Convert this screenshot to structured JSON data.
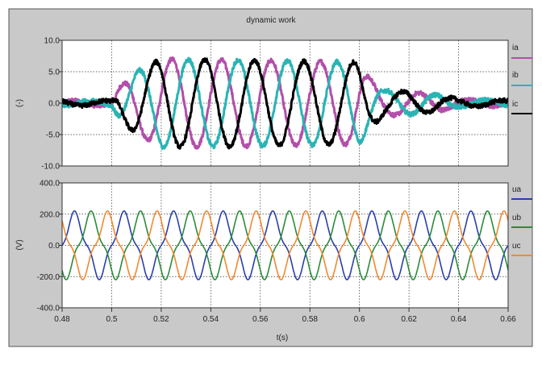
{
  "chart_data": [
    {
      "type": "line",
      "title": "dynamic work",
      "xlabel": "",
      "ylabel": "(-)",
      "xlim": [
        0.48,
        0.66
      ],
      "ylim": [
        -10,
        10
      ],
      "yticks": [
        "10.0",
        "5.0",
        "0.0",
        "-5.0",
        "-10.0"
      ],
      "ytick_values": [
        10,
        5,
        0,
        -5,
        -10
      ],
      "grid": true,
      "legend_position": "right",
      "freq_hz": 50,
      "amplitude_envelope": [
        [
          0.48,
          0.4
        ],
        [
          0.5,
          0.4
        ],
        [
          0.503,
          2.5
        ],
        [
          0.51,
          5
        ],
        [
          0.52,
          7
        ],
        [
          0.56,
          6.8
        ],
        [
          0.6,
          6.5
        ],
        [
          0.604,
          4
        ],
        [
          0.61,
          2
        ],
        [
          0.62,
          1.8
        ],
        [
          0.63,
          1.4
        ],
        [
          0.64,
          0.6
        ],
        [
          0.66,
          0.4
        ]
      ],
      "noise_amplitude": 0.35,
      "series": [
        {
          "name": "ia",
          "color": "#b24fa9",
          "zero_crossing_s": 0.5193,
          "phase_lag_deg": 0
        },
        {
          "name": "ib",
          "color": "#2ab4b4",
          "zero_crossing_s": 0.5193,
          "phase_lag_deg": 120
        },
        {
          "name": "ic",
          "color": "#000000",
          "zero_crossing_s": 0.5193,
          "phase_lag_deg": 240
        }
      ]
    },
    {
      "type": "line",
      "title": "",
      "xlabel": "t(s)",
      "ylabel": "(V)",
      "xlim": [
        0.48,
        0.66
      ],
      "ylim": [
        -400,
        400
      ],
      "yticks": [
        "400.0",
        "200.0",
        "0.0",
        "-200.0",
        "-400.0"
      ],
      "ytick_values": [
        400,
        200,
        0,
        -200,
        -400
      ],
      "xticks": [
        "0.48",
        "0.5",
        "0.52",
        "0.54",
        "0.56",
        "0.58",
        "0.6",
        "0.62",
        "0.64",
        "0.66"
      ],
      "xtick_values": [
        0.48,
        0.5,
        0.52,
        0.54,
        0.56,
        0.58,
        0.6,
        0.62,
        0.64,
        0.66
      ],
      "grid": true,
      "legend_position": "right",
      "freq_hz": 50,
      "peak_value": 220,
      "third_harmonic_ratio": 0.2,
      "series": [
        {
          "name": "ua",
          "color": "#2b3fa8",
          "zero_crossing_s": 0.48,
          "phase_lag_deg": 0
        },
        {
          "name": "ub",
          "color": "#2a8c3a",
          "zero_crossing_s": 0.48,
          "phase_lag_deg": 120
        },
        {
          "name": "uc",
          "color": "#f08a30",
          "zero_crossing_s": 0.48,
          "phase_lag_deg": 240
        }
      ]
    }
  ]
}
